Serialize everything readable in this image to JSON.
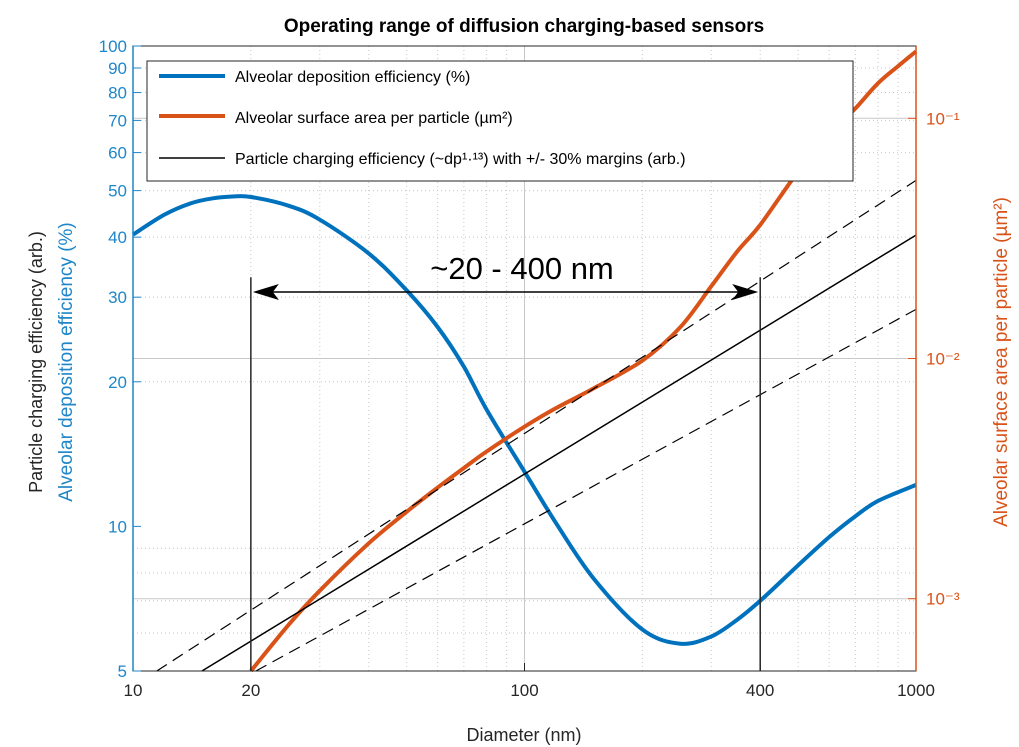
{
  "colors": {
    "blue": "#0072BD",
    "orange": "#D95319",
    "black": "#000000",
    "grid": "#c8c8c8",
    "left_axis_text": "#1f86c8",
    "right_axis_text": "#D95319"
  },
  "chart_data": {
    "type": "line",
    "title": "Operating range of diffusion charging-based sensors",
    "xlabel": "Diameter (nm)",
    "xscale": "log",
    "xlim": [
      10,
      1000
    ],
    "xticks": [
      10,
      20,
      100,
      400,
      1000
    ],
    "xtick_labels": [
      "10",
      "20",
      "100",
      "400",
      "1000"
    ],
    "ylabel_left_outer": "Particle charging efficiency (arb.)",
    "ylabel_left": "Alveolar deposition efficiency (%)",
    "yscale_left": "log",
    "ylim_left": [
      5,
      100
    ],
    "yticks_left": [
      5,
      10,
      20,
      30,
      40,
      50,
      60,
      70,
      80,
      90,
      100
    ],
    "ytick_labels_left": [
      "5",
      "10",
      "20",
      "30",
      "40",
      "50",
      "60",
      "70",
      "80",
      "90",
      "100"
    ],
    "ylabel_right": "Alveolar surface area per particle (µm²)",
    "yscale_right": "log",
    "ylim_right": [
      0.0005,
      0.2
    ],
    "yticks_right": [
      0.001,
      0.01,
      0.1
    ],
    "ytick_labels_right": [
      "10⁻³",
      "10⁻²",
      "10⁻¹"
    ],
    "grid": true,
    "legend_position": "top-left",
    "legend": [
      "Alveolar deposition efficiency (%)",
      "Alveolar surface area per particle (µm²)",
      "Particle charging efficiency (~dp¹·¹³) with +/- 30% margins (arb.)"
    ],
    "annotation": "~20 - 400 nm",
    "annotation_range": [
      20,
      400
    ],
    "series": [
      {
        "name": "Alveolar deposition efficiency (%)",
        "axis": "left",
        "x": [
          10,
          12,
          14,
          16,
          18,
          20,
          25,
          30,
          40,
          50,
          60,
          70,
          80,
          100,
          120,
          150,
          200,
          250,
          300,
          350,
          400,
          500,
          600,
          700,
          800,
          1000
        ],
        "y": [
          40.5,
          44.5,
          47,
          48.2,
          48.6,
          48.5,
          46.5,
          43.5,
          37,
          31,
          26,
          21.5,
          17.5,
          13,
          10.2,
          7.8,
          6.1,
          5.7,
          5.9,
          6.4,
          7,
          8.3,
          9.5,
          10.5,
          11.3,
          12.2
        ]
      },
      {
        "name": "Alveolar surface area per particle (µm²)",
        "axis": "right",
        "x": [
          20,
          25,
          30,
          40,
          50,
          60,
          70,
          80,
          100,
          120,
          150,
          200,
          250,
          300,
          350,
          400,
          500,
          600,
          700,
          800,
          900,
          1000
        ],
        "y": [
          0.0005,
          0.00078,
          0.00108,
          0.0017,
          0.0023,
          0.0029,
          0.0035,
          0.0041,
          0.0052,
          0.0062,
          0.0075,
          0.0098,
          0.0135,
          0.02,
          0.028,
          0.036,
          0.06,
          0.085,
          0.11,
          0.14,
          0.165,
          0.19
        ]
      },
      {
        "name": "Particle charging efficiency (~dp¹·¹³) with +/- 30% margins (arb.)",
        "axis": "left",
        "x": [
          15,
          1000
        ],
        "y": [
          5,
          40.4
        ]
      },
      {
        "name": "+30% margin",
        "axis": "left",
        "style": "dashed",
        "x": [
          11.5,
          1000
        ],
        "y": [
          5,
          52.5
        ]
      },
      {
        "name": "-30% margin",
        "axis": "left",
        "style": "dashed",
        "x": [
          20.6,
          1000
        ],
        "y": [
          5,
          28.3
        ]
      }
    ],
    "vertical_lines": [
      {
        "x": 20,
        "y_top": 33,
        "y_bottom": 5
      },
      {
        "x": 400,
        "y_top": 33,
        "y_bottom": 5
      }
    ]
  }
}
